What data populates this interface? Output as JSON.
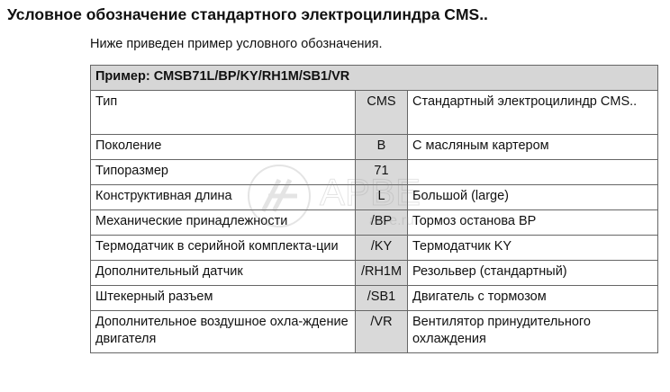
{
  "title": "Условное обозначение стандартного электроцилиндра CMS..",
  "subtitle": "Ниже приведен пример условного обозначения.",
  "table": {
    "header": "Пример: CMSB71L/BP/KY/RH1M/SB1/VR",
    "rows": [
      {
        "name": "Тип",
        "code": "CMS",
        "desc": "Стандартный электроцилиндр CMS.."
      },
      {
        "name": "Поколение",
        "code": "B",
        "desc": "С масляным картером"
      },
      {
        "name": "Типоразмер",
        "code": "71",
        "desc": ""
      },
      {
        "name": "Конструктивная длина",
        "code": "L",
        "desc": "Большой (large)"
      },
      {
        "name": "Механические принадлежности",
        "code": "/BP",
        "desc": "Тормоз останова BP"
      },
      {
        "name": "Термодатчик в серийной комплекта-ции",
        "code": "/KY",
        "desc": "Термодатчик KY"
      },
      {
        "name": "Дополнительный датчик",
        "code": "/RH1M",
        "desc": "Резольвер (стандартный)"
      },
      {
        "name": "Штекерный разъем",
        "code": "/SB1",
        "desc": "Двигатель с тормозом"
      },
      {
        "name": "Дополнительное воздушное охла-ждение двигателя",
        "code": "/VR",
        "desc": "Вентилятор принудительного охлаждения"
      }
    ]
  },
  "watermark": {
    "text": "АРВЕ",
    "url": "arve.ru"
  }
}
